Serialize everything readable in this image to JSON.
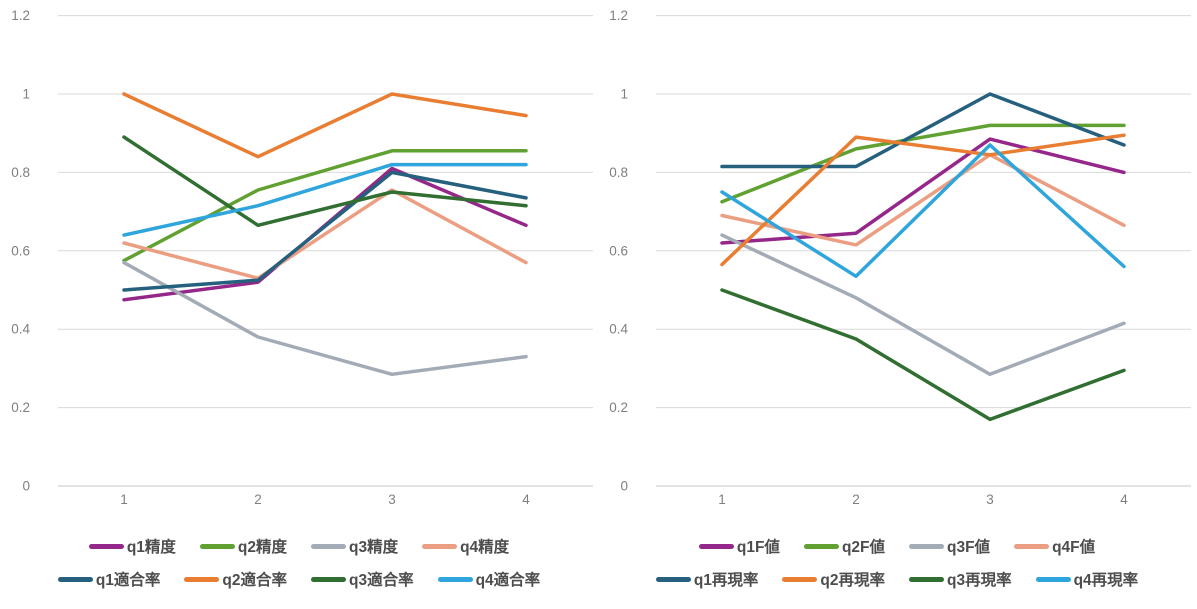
{
  "style": {
    "background": "#FFFFFF",
    "grid_color": "#D9D9D9",
    "baseline_color": "#C8C8C8",
    "axis_label_color": "#7F7F7F",
    "legend_text_color": "#4D4D4D"
  },
  "chart_data": [
    {
      "type": "line",
      "title": "",
      "xlabel": "",
      "ylabel": "",
      "x_tick_labels": [
        "1",
        "2",
        "3",
        "4"
      ],
      "y_tick_labels": [
        "1.2",
        "1",
        "0.8",
        "0.6",
        "0.4",
        "0.2",
        "0"
      ],
      "y_tick_values": [
        1.2,
        1.0,
        0.8,
        0.6,
        0.4,
        0.2,
        0
      ],
      "ylim": [
        0,
        1.2
      ],
      "grid": "horizontal",
      "legend_position": "bottom-two-rows",
      "series": [
        {
          "name": "q1精度",
          "color": "#96278A",
          "values": [
            0.475,
            0.52,
            0.81,
            0.665
          ]
        },
        {
          "name": "q2精度",
          "color": "#60A132",
          "values": [
            0.575,
            0.755,
            0.855,
            0.855
          ]
        },
        {
          "name": "q3精度",
          "color": "#A3ABB6",
          "values": [
            0.57,
            0.38,
            0.285,
            0.33
          ]
        },
        {
          "name": "q4精度",
          "color": "#EB9E82",
          "values": [
            0.62,
            0.53,
            0.755,
            0.57
          ]
        },
        {
          "name": "q1適合率",
          "color": "#25607E",
          "values": [
            0.5,
            0.525,
            0.8,
            0.735
          ]
        },
        {
          "name": "q2適合率",
          "color": "#E97D32",
          "values": [
            1.0,
            0.84,
            1.0,
            0.945
          ]
        },
        {
          "name": "q3適合率",
          "color": "#306E31",
          "values": [
            0.89,
            0.665,
            0.75,
            0.715
          ]
        },
        {
          "name": "q4適合率",
          "color": "#2EA5DC",
          "values": [
            0.64,
            0.715,
            0.82,
            0.82
          ]
        }
      ]
    },
    {
      "type": "line",
      "title": "",
      "xlabel": "",
      "ylabel": "",
      "x_tick_labels": [
        "1",
        "2",
        "3",
        "4"
      ],
      "y_tick_labels": [
        "1.2",
        "1",
        "0.8",
        "0.6",
        "0.4",
        "0.2",
        "0"
      ],
      "y_tick_values": [
        1.2,
        1.0,
        0.8,
        0.6,
        0.4,
        0.2,
        0
      ],
      "ylim": [
        0,
        1.2
      ],
      "grid": "horizontal",
      "legend_position": "bottom-two-rows",
      "series": [
        {
          "name": "q1F値",
          "color": "#96278A",
          "values": [
            0.62,
            0.645,
            0.885,
            0.8
          ]
        },
        {
          "name": "q2F値",
          "color": "#60A132",
          "values": [
            0.725,
            0.86,
            0.92,
            0.92
          ]
        },
        {
          "name": "q3F値",
          "color": "#A3ABB6",
          "values": [
            0.64,
            0.48,
            0.285,
            0.415
          ]
        },
        {
          "name": "q4F値",
          "color": "#EB9E82",
          "values": [
            0.69,
            0.615,
            0.845,
            0.665
          ]
        },
        {
          "name": "q1再現率",
          "color": "#25607E",
          "values": [
            0.815,
            0.815,
            1.0,
            0.87
          ]
        },
        {
          "name": "q2再現率",
          "color": "#E97D32",
          "values": [
            0.565,
            0.89,
            0.845,
            0.895
          ]
        },
        {
          "name": "q3再現率",
          "color": "#306E31",
          "values": [
            0.5,
            0.375,
            0.17,
            0.295
          ]
        },
        {
          "name": "q4再現率",
          "color": "#2EA5DC",
          "values": [
            0.75,
            0.535,
            0.87,
            0.56
          ]
        }
      ]
    }
  ]
}
